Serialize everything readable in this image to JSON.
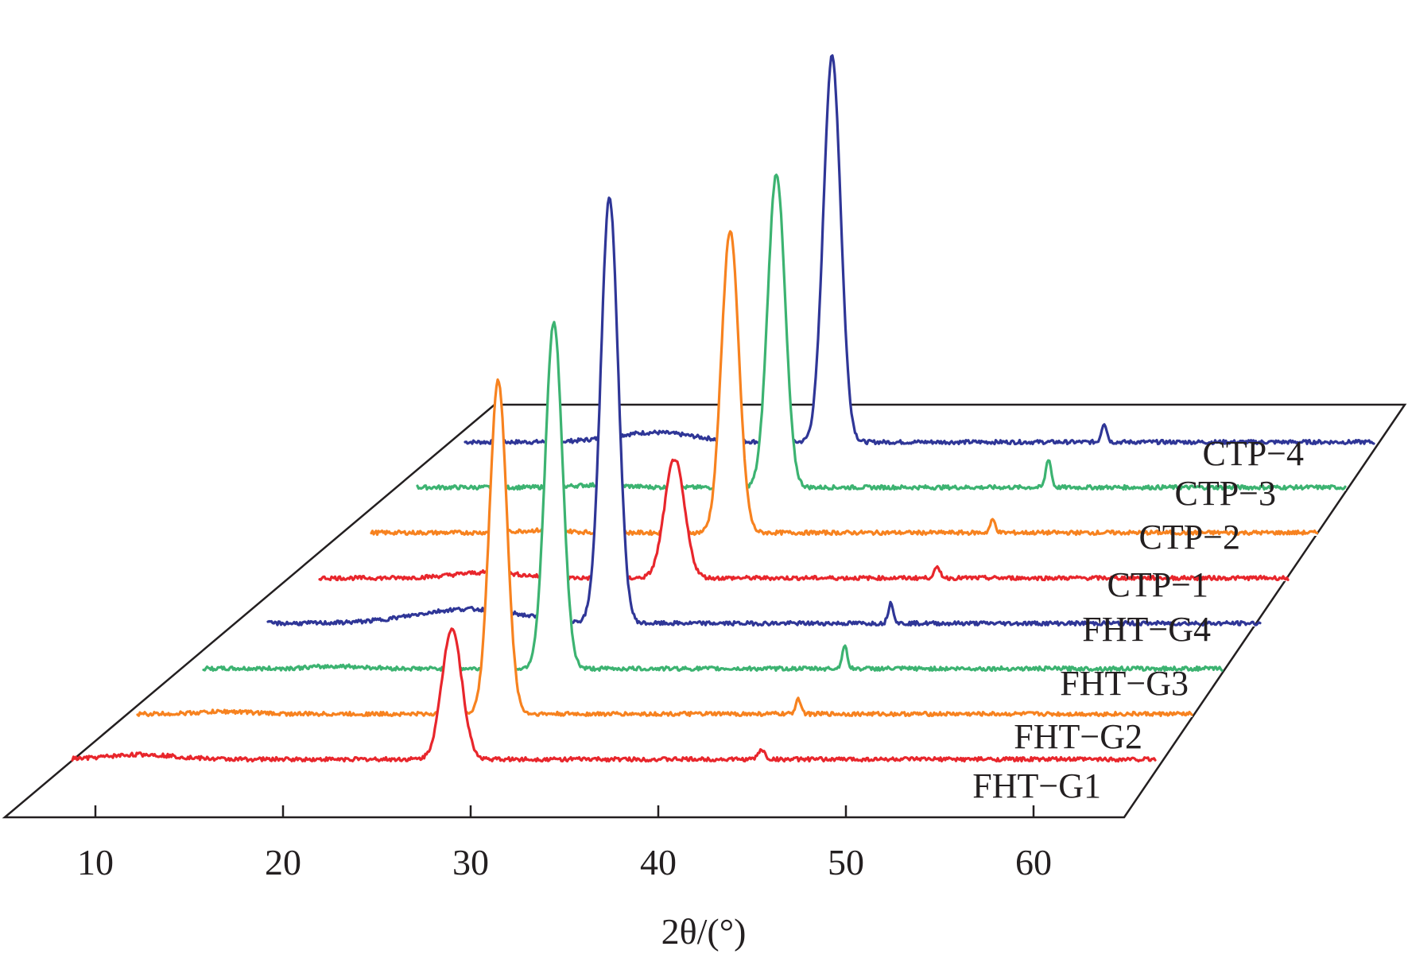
{
  "chart_data": {
    "type": "line",
    "style": "3d-waterfall",
    "title": "",
    "xlabel": "2θ/(°)",
    "ylabel": "",
    "xlim": [
      5,
      65
    ],
    "xticks": [
      10,
      20,
      30,
      40,
      50,
      60
    ],
    "xtick_labels": [
      "10",
      "20",
      "30",
      "40",
      "50",
      "60"
    ],
    "grid": false,
    "legend": "labels placed beside each trace",
    "series": [
      {
        "name": "FHT−G1",
        "label_text": "FHT−G1",
        "color": "#e8262c",
        "hump_center": 12.5,
        "hump_height": 6,
        "hump_width": 2.5,
        "peaks": [
          {
            "x": 29.0,
            "height": 165,
            "width": 0.75
          },
          {
            "x": 45.5,
            "height": 12,
            "width": 0.25
          }
        ]
      },
      {
        "name": "FHT−G2",
        "label_text": "FHT−G2",
        "color": "#f7821f",
        "hump_center": 14.0,
        "hump_height": 3,
        "hump_width": 2.0,
        "peaks": [
          {
            "x": 28.5,
            "height": 420,
            "width": 0.65
          },
          {
            "x": 44.5,
            "height": 20,
            "width": 0.2
          }
        ]
      },
      {
        "name": "FHT−G3",
        "label_text": "FHT−G3",
        "color": "#3cb371",
        "hump_center": 17.0,
        "hump_height": 3,
        "hump_width": 2.0,
        "peaks": [
          {
            "x": 28.5,
            "height": 435,
            "width": 0.65
          },
          {
            "x": 44.0,
            "height": 28,
            "width": 0.2
          }
        ]
      },
      {
        "name": "FHT−G4",
        "label_text": "FHT−G4",
        "color": "#2f3697",
        "hump_center": 21.0,
        "hump_height": 18,
        "hump_width": 4.0,
        "peaks": [
          {
            "x": 28.5,
            "height": 535,
            "width": 0.65
          },
          {
            "x": 43.5,
            "height": 26,
            "width": 0.2
          }
        ]
      },
      {
        "name": "CTP−1",
        "label_text": "CTP−1",
        "color": "#e8262c",
        "hump_center": 19.0,
        "hump_height": 7,
        "hump_width": 2.5,
        "peaks": [
          {
            "x": 29.0,
            "height": 150,
            "width": 0.75
          },
          {
            "x": 43.0,
            "height": 12,
            "width": 0.25
          }
        ]
      },
      {
        "name": "CTP−2",
        "label_text": "CTP−2",
        "color": "#f7821f",
        "hump_center": 19.0,
        "hump_height": 3,
        "hump_width": 2.0,
        "peaks": [
          {
            "x": 29.0,
            "height": 380,
            "width": 0.65
          },
          {
            "x": 43.0,
            "height": 16,
            "width": 0.2
          }
        ]
      },
      {
        "name": "CTP−3",
        "label_text": "CTP−3",
        "color": "#3cb371",
        "hump_center": 19.0,
        "hump_height": 3,
        "hump_width": 2.0,
        "peaks": [
          {
            "x": 28.5,
            "height": 395,
            "width": 0.65
          },
          {
            "x": 43.0,
            "height": 36,
            "width": 0.2
          }
        ]
      },
      {
        "name": "CTP−4",
        "label_text": "CTP−4",
        "color": "#2f3697",
        "hump_center": 19.0,
        "hump_height": 12,
        "hump_width": 3.0,
        "peaks": [
          {
            "x": 28.5,
            "height": 485,
            "width": 0.65
          },
          {
            "x": 43.0,
            "height": 24,
            "width": 0.2
          }
        ]
      }
    ]
  }
}
